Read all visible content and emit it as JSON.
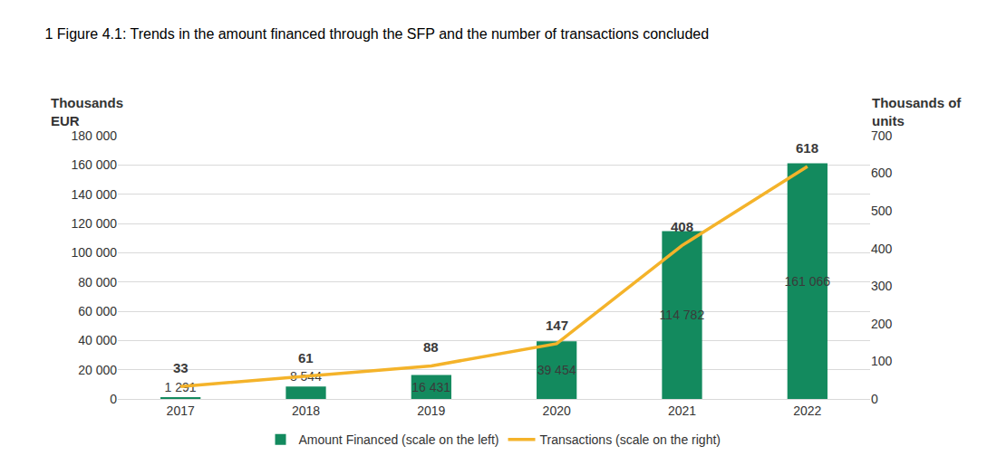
{
  "chart_data": {
    "type": "bar",
    "title": "1 Figure 4.1: Trends in the amount financed through the SFP and the number of transactions concluded",
    "y_label": "Thousands\nEUR",
    "y2_label": "Thousands of\nunits",
    "categories": [
      "2017",
      "2018",
      "2019",
      "2020",
      "2021",
      "2022"
    ],
    "series": [
      {
        "name": "Amount Financed (scale on the left)",
        "type": "bar",
        "color": "#138a5e",
        "values": [
          1291,
          8544,
          16431,
          39454,
          114782,
          161066
        ],
        "value_labels": [
          "1 291",
          "8 544",
          "16 431",
          "39 454",
          "114 782",
          "161 066"
        ]
      },
      {
        "name": "Transactions (scale on the right)",
        "type": "line",
        "axis": "y2",
        "color": "#f4b32a",
        "values": [
          33,
          61,
          88,
          147,
          408,
          618
        ]
      }
    ],
    "ylim": [
      0,
      180000
    ],
    "yticks": [
      0,
      {
        "value": 20000,
        "label": "20 000"
      },
      {
        "value": 40000,
        "label": "40 000"
      },
      {
        "value": 60000,
        "label": "60 000"
      },
      {
        "value": 80000,
        "label": "80 000"
      },
      {
        "value": 100000,
        "label": "100 000"
      },
      {
        "value": 120000,
        "label": "120 000"
      },
      {
        "value": 140000,
        "label": "140 000"
      },
      {
        "value": 160000,
        "label": "160 000"
      },
      {
        "value": 180000,
        "label": "180 000"
      }
    ],
    "y2lim": [
      0,
      700
    ],
    "y2ticks": [
      0,
      100,
      200,
      300,
      400,
      500,
      600,
      700
    ],
    "grid": true,
    "legend": "bottom",
    "data_labels": true
  }
}
